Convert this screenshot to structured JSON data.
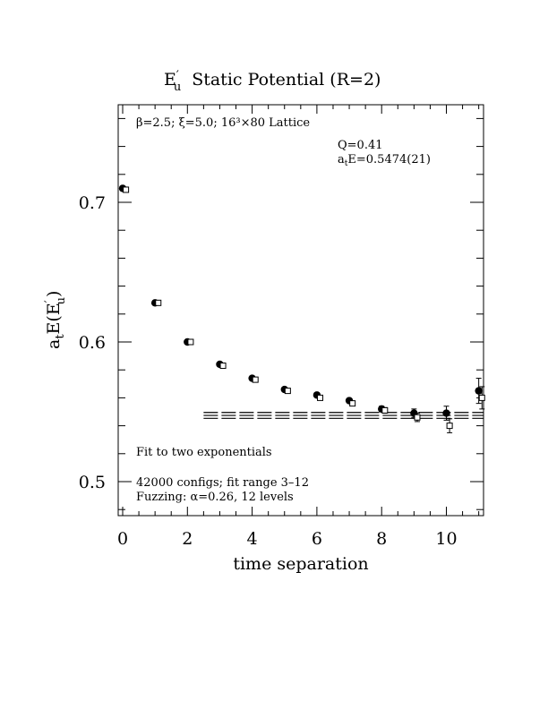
{
  "chart_data": {
    "type": "scatter",
    "title": "E′u Static Potential (R=2)",
    "title_parts": {
      "main": "E",
      "prime": "′",
      "sub": "u",
      "rest": "Static Potential (R=2)"
    },
    "xlabel": "time separation",
    "ylabel": "aₜE(E′u)",
    "ylabel_parts": {
      "a": "a",
      "t": "t",
      "mid": "E(E",
      "prime": "′",
      "u": "u",
      "close": ")"
    },
    "xlim": [
      -0.1,
      11.2
    ],
    "ylim": [
      0.475,
      0.77
    ],
    "xticks": [
      0,
      2,
      4,
      6,
      8,
      10
    ],
    "xtick_labels": [
      "0",
      "2",
      "4",
      "6",
      "8",
      "10"
    ],
    "yticks": [
      0.5,
      0.6,
      0.7
    ],
    "ytick_labels": [
      "0.5",
      "0.6",
      "0.7"
    ],
    "grid": false,
    "series": [
      {
        "marker": "filled-circle",
        "x": [
          0,
          1,
          2,
          3,
          4,
          5,
          6,
          7,
          8,
          9,
          10,
          11
        ],
        "y": [
          0.71,
          0.628,
          0.6,
          0.584,
          0.574,
          0.566,
          0.562,
          0.558,
          0.552,
          0.549,
          0.549,
          0.565
        ],
        "err": [
          0.0005,
          0.0006,
          0.0007,
          0.0008,
          0.0008,
          0.001,
          0.0012,
          0.0015,
          0.002,
          0.003,
          0.005,
          0.009
        ]
      },
      {
        "marker": "open-square",
        "x": [
          0.1,
          1.1,
          2.1,
          3.1,
          4.1,
          5.1,
          6.1,
          7.1,
          8.1,
          9.1,
          10.1,
          11.1
        ],
        "y": [
          0.709,
          0.628,
          0.6,
          0.583,
          0.573,
          0.565,
          0.56,
          0.556,
          0.551,
          0.546,
          0.54,
          0.56
        ],
        "err": [
          0.0005,
          0.0006,
          0.0007,
          0.0008,
          0.0008,
          0.001,
          0.0012,
          0.0015,
          0.002,
          0.003,
          0.005,
          0.008
        ]
      }
    ],
    "fit": {
      "center": 0.5474,
      "error": 0.0021,
      "x_range": [
        2.5,
        11.2
      ]
    },
    "annotations": {
      "lattice": "β=2.5; ξ=5.0; 16³×80 Lattice",
      "q_value": "Q=0.41",
      "energy": "aₜE=0.5474(21)",
      "energy_parts": {
        "a": "a",
        "t": "t",
        "rest": "E=0.5474(21)"
      },
      "fit_description": "Fit to two exponentials",
      "configs": "42000 configs; fit range 3–12",
      "fuzzing": "Fuzzing: α=0.26, 12 levels"
    }
  }
}
